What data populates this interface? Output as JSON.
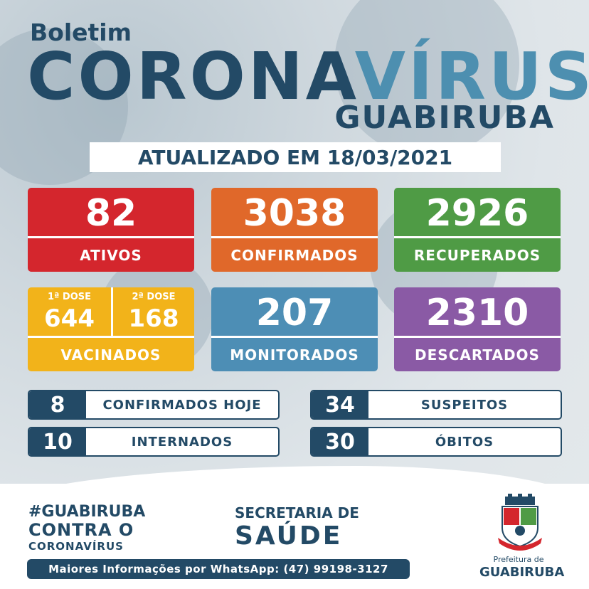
{
  "header": {
    "boletim": "Boletim",
    "title_part1": "CORONA",
    "title_part2": "VÍRUS",
    "city": "GUABIRUBA",
    "updated": "ATUALIZADO EM 18/03/2021"
  },
  "cards": {
    "ativos": {
      "value": "82",
      "label": "ATIVOS"
    },
    "confirmados": {
      "value": "3038",
      "label": "CONFIRMADOS"
    },
    "recuperados": {
      "value": "2926",
      "label": "RECUPERADOS"
    },
    "vacinados": {
      "dose1_label": "1ª DOSE",
      "dose1_value": "644",
      "dose2_label": "2ª DOSE",
      "dose2_value": "168",
      "label": "VACINADOS"
    },
    "monitorados": {
      "value": "207",
      "label": "MONITORADOS"
    },
    "descartados": {
      "value": "2310",
      "label": "DESCARTADOS"
    }
  },
  "rows": {
    "confirmados_hoje": {
      "value": "8",
      "label": "CONFIRMADOS HOJE"
    },
    "suspeitos": {
      "value": "34",
      "label": "SUSPEITOS"
    },
    "internados": {
      "value": "10",
      "label": "INTERNADOS"
    },
    "obitos": {
      "value": "30",
      "label": "ÓBITOS"
    }
  },
  "footer": {
    "hashtag": "#GUABIRUBA",
    "contra": "CONTRA O",
    "coronavirus": "CORONAVÍRUS",
    "secretaria": "SECRETARIA DE",
    "saude": "SAÚDE",
    "whatsapp": "Maiores Informações por WhatsApp: (47) 99198-3127",
    "prefeitura_de": "Prefeitura de",
    "prefeitura_city": "GUABIRUBA"
  },
  "colors": {
    "navy": "#234a66",
    "accent": "#4d8fb0",
    "ativos": "#d4262d",
    "confirmados": "#e0682a",
    "recuperados": "#4f9b45",
    "vacinados": "#f2b31a",
    "monitorados": "#4d8eb5",
    "descartados": "#8a5aa5"
  }
}
